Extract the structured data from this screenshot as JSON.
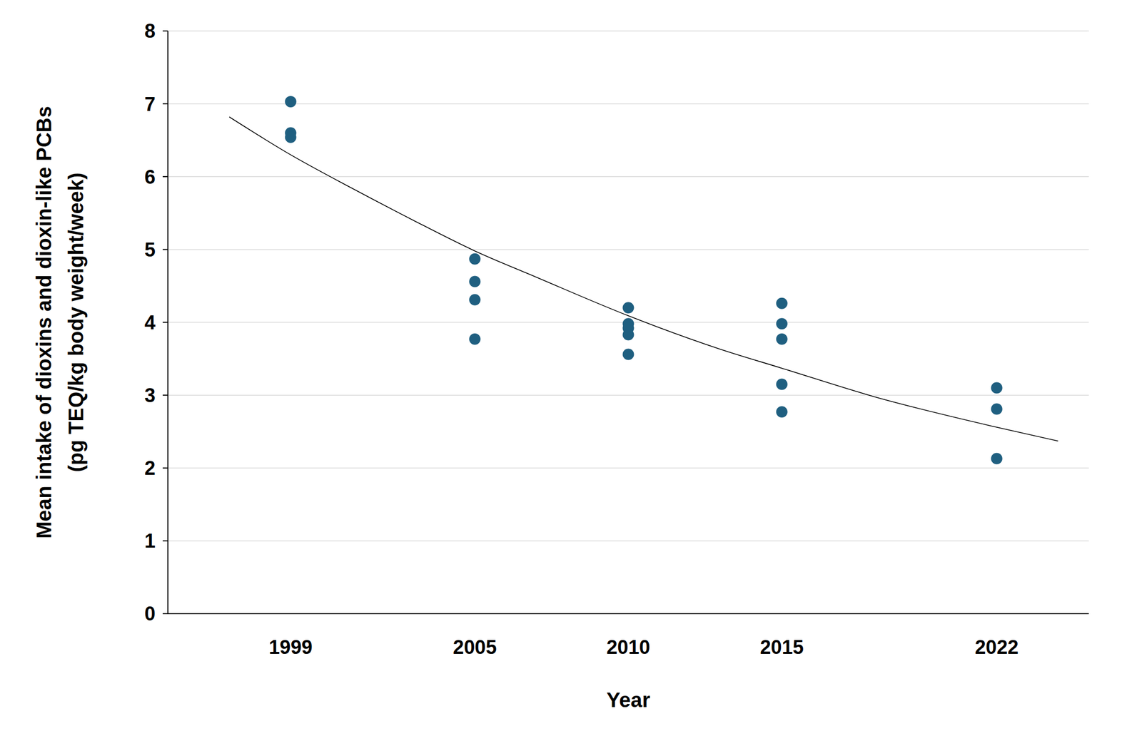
{
  "chart_data": {
    "type": "scatter",
    "x_label": "Year",
    "y_label": [
      "Mean intake of dioxins and dioxin-like PCBs",
      "(pg TEQ/kg body weight/week)"
    ],
    "xlim": [
      1995,
      2025
    ],
    "xticks": [
      1999,
      2005,
      2010,
      2015,
      2022
    ],
    "ylim": [
      0,
      8
    ],
    "yticks": [
      0,
      1,
      2,
      3,
      4,
      5,
      6,
      7,
      8
    ],
    "grid": true,
    "series": [
      {
        "type": "scatter",
        "marker": "circle",
        "color": "#1f5f80",
        "x": [
          1999,
          1999,
          1999,
          2005,
          2005,
          2005,
          2005,
          2010,
          2010,
          2010,
          2010,
          2010,
          2015,
          2015,
          2015,
          2015,
          2015,
          2022,
          2022,
          2022
        ],
        "values": [
          7.03,
          6.6,
          6.54,
          4.87,
          4.56,
          4.31,
          3.77,
          4.2,
          3.98,
          3.92,
          3.83,
          3.56,
          4.26,
          3.98,
          3.77,
          3.15,
          2.77,
          3.1,
          2.81,
          2.13
        ]
      },
      {
        "type": "line",
        "line_style": "solid",
        "color": "#000000",
        "x": [
          1997,
          1999,
          2001,
          2003,
          2005,
          2007,
          2010,
          2013,
          2015,
          2018,
          2022,
          2024
        ],
        "values": [
          6.82,
          6.3,
          5.84,
          5.4,
          4.98,
          4.62,
          4.09,
          3.63,
          3.37,
          2.98,
          2.56,
          2.37
        ]
      }
    ]
  }
}
